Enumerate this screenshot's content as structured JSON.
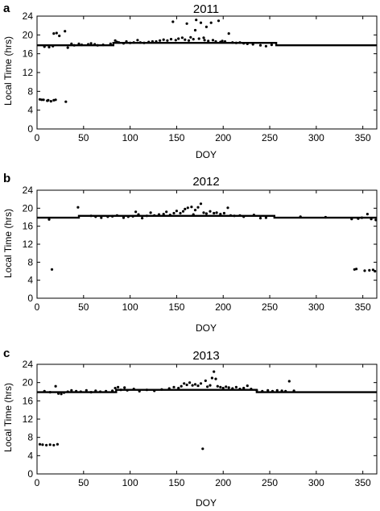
{
  "chart_data": [
    {
      "type": "scatter",
      "panel": "a",
      "title": "2011",
      "xlabel": "DOY",
      "ylabel": "Local Time (hrs)",
      "xlim": [
        0,
        365
      ],
      "ylim": [
        0,
        24
      ],
      "xticks": [
        0,
        50,
        100,
        150,
        200,
        250,
        300,
        350
      ],
      "yticks": [
        0,
        4,
        8,
        12,
        16,
        20,
        24
      ],
      "baseline": {
        "label": "",
        "y": 17.8,
        "x_start": 0,
        "x_end": 365,
        "mid_segment": {
          "x_start": 82,
          "x_end": 257,
          "y": 18.3
        }
      },
      "points": [
        [
          3,
          6.3
        ],
        [
          5,
          6.2
        ],
        [
          7,
          6.2
        ],
        [
          11,
          6.0
        ],
        [
          12,
          6.1
        ],
        [
          15,
          5.9
        ],
        [
          18,
          6.1
        ],
        [
          20,
          6.2
        ],
        [
          31,
          5.8
        ],
        [
          8,
          17.5
        ],
        [
          13,
          17.4
        ],
        [
          17,
          17.6
        ],
        [
          18,
          20.3
        ],
        [
          21,
          20.4
        ],
        [
          24,
          19.8
        ],
        [
          30,
          20.8
        ],
        [
          33,
          17.3
        ],
        [
          37,
          18.1
        ],
        [
          40,
          17.8
        ],
        [
          45,
          18.1
        ],
        [
          48,
          17.9
        ],
        [
          55,
          18.0
        ],
        [
          58,
          18.2
        ],
        [
          62,
          18.0
        ],
        [
          65,
          17.8
        ],
        [
          71,
          17.9
        ],
        [
          79,
          18.1
        ],
        [
          84,
          18.8
        ],
        [
          86,
          18.5
        ],
        [
          88,
          18.4
        ],
        [
          93,
          18.2
        ],
        [
          96,
          18.6
        ],
        [
          100,
          18.3
        ],
        [
          104,
          18.4
        ],
        [
          108,
          18.9
        ],
        [
          111,
          18.4
        ],
        [
          115,
          18.3
        ],
        [
          120,
          18.5
        ],
        [
          124,
          18.6
        ],
        [
          128,
          18.6
        ],
        [
          132,
          18.8
        ],
        [
          136,
          19.0
        ],
        [
          140,
          18.8
        ],
        [
          144,
          19.1
        ],
        [
          146,
          22.8
        ],
        [
          149,
          18.9
        ],
        [
          152,
          19.2
        ],
        [
          156,
          19.4
        ],
        [
          159,
          19.0
        ],
        [
          161,
          22.4
        ],
        [
          163,
          18.8
        ],
        [
          165,
          19.5
        ],
        [
          168,
          19.1
        ],
        [
          170,
          21.0
        ],
        [
          171,
          23.2
        ],
        [
          174,
          19.2
        ],
        [
          176,
          22.6
        ],
        [
          179,
          19.4
        ],
        [
          180,
          18.9
        ],
        [
          182,
          21.7
        ],
        [
          184,
          18.7
        ],
        [
          187,
          22.6
        ],
        [
          189,
          18.9
        ],
        [
          192,
          18.6
        ],
        [
          195,
          23.0
        ],
        [
          197,
          18.5
        ],
        [
          199,
          18.7
        ],
        [
          202,
          18.6
        ],
        [
          206,
          20.3
        ],
        [
          210,
          18.4
        ],
        [
          214,
          18.3
        ],
        [
          218,
          18.4
        ],
        [
          222,
          18.2
        ],
        [
          226,
          18.1
        ],
        [
          232,
          18.0
        ],
        [
          240,
          17.8
        ],
        [
          246,
          17.6
        ],
        [
          252,
          17.9
        ]
      ]
    },
    {
      "type": "scatter",
      "panel": "b",
      "title": "2012",
      "xlabel": "DOY",
      "ylabel": "Local Time (hrs)",
      "xlim": [
        0,
        365
      ],
      "ylim": [
        0,
        24
      ],
      "xticks": [
        0,
        50,
        100,
        150,
        200,
        250,
        300,
        350
      ],
      "yticks": [
        0,
        4,
        8,
        12,
        16,
        20,
        24
      ],
      "baseline": {
        "label": "",
        "y": 17.9,
        "x_start": 0,
        "x_end": 365,
        "mid_segment": {
          "x_start": 45,
          "x_end": 255,
          "y": 18.3
        }
      },
      "points": [
        [
          13,
          17.5
        ],
        [
          16,
          6.4
        ],
        [
          44,
          20.2
        ],
        [
          58,
          18.3
        ],
        [
          63,
          18.1
        ],
        [
          69,
          17.9
        ],
        [
          76,
          18.1
        ],
        [
          81,
          18.2
        ],
        [
          86,
          18.4
        ],
        [
          93,
          17.9
        ],
        [
          98,
          18.1
        ],
        [
          103,
          18.2
        ],
        [
          106,
          19.2
        ],
        [
          109,
          18.6
        ],
        [
          113,
          17.8
        ],
        [
          118,
          18.3
        ],
        [
          122,
          19.0
        ],
        [
          126,
          18.4
        ],
        [
          131,
          18.6
        ],
        [
          136,
          18.7
        ],
        [
          139,
          19.2
        ],
        [
          143,
          18.5
        ],
        [
          147,
          18.9
        ],
        [
          150,
          19.4
        ],
        [
          154,
          18.9
        ],
        [
          157,
          19.3
        ],
        [
          159,
          19.8
        ],
        [
          162,
          20.1
        ],
        [
          166,
          20.3
        ],
        [
          168,
          18.6
        ],
        [
          170,
          19.6
        ],
        [
          173,
          20.2
        ],
        [
          176,
          21.0
        ],
        [
          179,
          19.0
        ],
        [
          182,
          18.8
        ],
        [
          186,
          19.3
        ],
        [
          190,
          18.9
        ],
        [
          193,
          19.0
        ],
        [
          197,
          18.7
        ],
        [
          201,
          18.9
        ],
        [
          205,
          20.1
        ],
        [
          208,
          18.4
        ],
        [
          212,
          18.3
        ],
        [
          218,
          18.4
        ],
        [
          222,
          18.1
        ],
        [
          233,
          18.5
        ],
        [
          240,
          17.8
        ],
        [
          246,
          17.9
        ],
        [
          283,
          18.1
        ],
        [
          310,
          18.0
        ],
        [
          338,
          17.6
        ],
        [
          341,
          6.4
        ],
        [
          343,
          6.5
        ],
        [
          345,
          17.7
        ],
        [
          349,
          17.9
        ],
        [
          352,
          6.1
        ],
        [
          355,
          18.7
        ],
        [
          357,
          6.2
        ],
        [
          359,
          17.6
        ],
        [
          361,
          6.3
        ],
        [
          363,
          6.0
        ],
        [
          364,
          17.4
        ]
      ]
    },
    {
      "type": "scatter",
      "panel": "c",
      "title": "2013",
      "xlabel": "DOY",
      "ylabel": "Local Time (hrs)",
      "xlim": [
        0,
        365
      ],
      "ylim": [
        0,
        24
      ],
      "xticks": [
        0,
        50,
        100,
        150,
        200,
        250,
        300,
        350
      ],
      "yticks": [
        0,
        4,
        8,
        12,
        16,
        20,
        24
      ],
      "baseline": {
        "label": "",
        "y": 17.9,
        "x_start": 0,
        "x_end": 365,
        "mid_segment": {
          "x_start": 85,
          "x_end": 236,
          "y": 18.4
        }
      },
      "points": [
        [
          3,
          6.5
        ],
        [
          6,
          6.4
        ],
        [
          10,
          6.3
        ],
        [
          14,
          6.4
        ],
        [
          18,
          6.3
        ],
        [
          22,
          6.5
        ],
        [
          8,
          18.1
        ],
        [
          14,
          17.9
        ],
        [
          20,
          19.2
        ],
        [
          23,
          17.6
        ],
        [
          26,
          17.5
        ],
        [
          29,
          17.8
        ],
        [
          33,
          18.0
        ],
        [
          37,
          18.3
        ],
        [
          42,
          18.1
        ],
        [
          47,
          18.0
        ],
        [
          53,
          18.3
        ],
        [
          58,
          17.9
        ],
        [
          63,
          18.2
        ],
        [
          68,
          18.0
        ],
        [
          74,
          18.1
        ],
        [
          81,
          18.2
        ],
        [
          84,
          18.8
        ],
        [
          87,
          19.0
        ],
        [
          90,
          18.4
        ],
        [
          94,
          18.9
        ],
        [
          97,
          18.3
        ],
        [
          104,
          18.6
        ],
        [
          110,
          18.1
        ],
        [
          118,
          18.4
        ],
        [
          126,
          18.2
        ],
        [
          134,
          18.5
        ],
        [
          142,
          18.7
        ],
        [
          147,
          19.0
        ],
        [
          152,
          18.8
        ],
        [
          155,
          19.2
        ],
        [
          158,
          19.8
        ],
        [
          161,
          19.5
        ],
        [
          164,
          20.0
        ],
        [
          167,
          19.4
        ],
        [
          170,
          19.6
        ],
        [
          173,
          19.3
        ],
        [
          176,
          19.8
        ],
        [
          178,
          5.5
        ],
        [
          181,
          20.4
        ],
        [
          183,
          19.1
        ],
        [
          186,
          19.4
        ],
        [
          188,
          21.0
        ],
        [
          190,
          22.4
        ],
        [
          192,
          20.8
        ],
        [
          194,
          19.2
        ],
        [
          197,
          19.0
        ],
        [
          200,
          18.8
        ],
        [
          203,
          19.1
        ],
        [
          206,
          18.9
        ],
        [
          210,
          18.7
        ],
        [
          214,
          19.0
        ],
        [
          218,
          18.6
        ],
        [
          222,
          18.8
        ],
        [
          226,
          19.3
        ],
        [
          230,
          18.6
        ],
        [
          236,
          18.3
        ],
        [
          242,
          18.1
        ],
        [
          248,
          18.3
        ],
        [
          253,
          18.1
        ],
        [
          258,
          18.3
        ],
        [
          263,
          18.2
        ],
        [
          267,
          18.1
        ],
        [
          271,
          20.3
        ],
        [
          276,
          18.2
        ]
      ]
    }
  ]
}
